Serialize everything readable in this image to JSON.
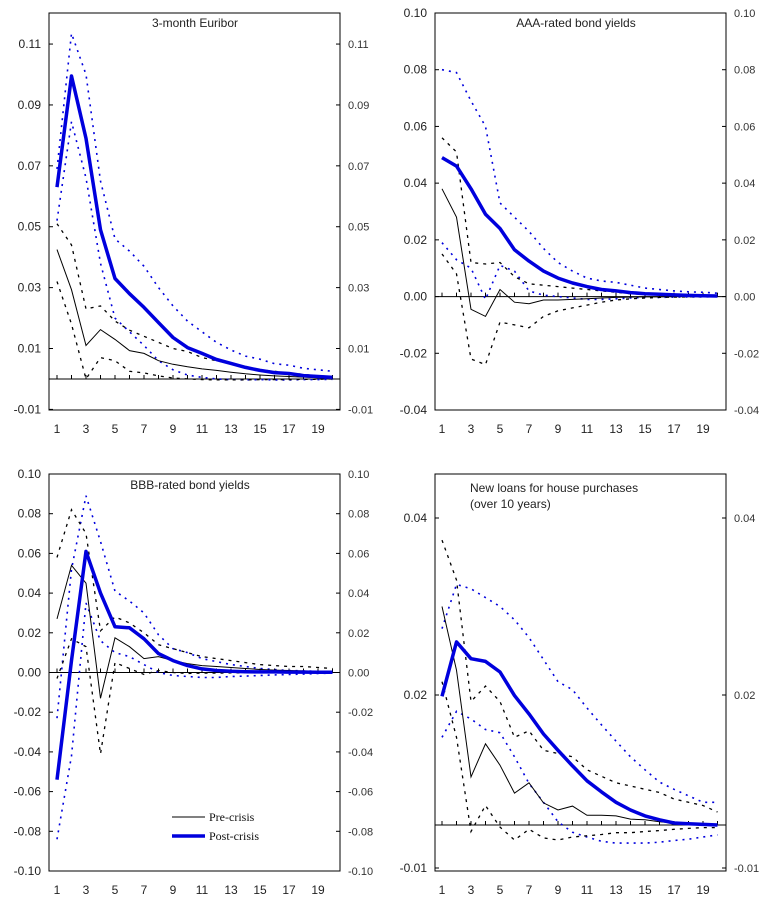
{
  "chart_data": [
    {
      "type": "line",
      "title": "3-month Euribor",
      "title_lines": [
        "3-month Euribor"
      ],
      "x": [
        1,
        2,
        3,
        4,
        5,
        6,
        7,
        8,
        9,
        10,
        11,
        12,
        13,
        14,
        15,
        16,
        17,
        18,
        19,
        20
      ],
      "xticks": [
        1,
        3,
        5,
        7,
        9,
        11,
        13,
        15,
        17,
        19
      ],
      "xlabel": "",
      "ylabel": "",
      "ylim": [
        -0.01,
        0.12
      ],
      "yticks": [
        -0.01,
        0.01,
        0.03,
        0.05,
        0.07,
        0.09,
        0.11
      ],
      "ytick_labels": [
        "-0.01",
        "0.01",
        "0.03",
        "0.05",
        "0.07",
        "0.09",
        "0.11"
      ],
      "grid": false,
      "zero_line": 0,
      "series": [
        {
          "name": "Post-crisis upper band",
          "style": "blue-dotted",
          "values": [
            0.069,
            0.1135,
            0.1,
            0.065,
            0.046,
            0.042,
            0.037,
            0.03,
            0.024,
            0.019,
            0.0155,
            0.012,
            0.0095,
            0.0075,
            0.0065,
            0.005,
            0.0045,
            0.0035,
            0.003,
            0.0025
          ]
        },
        {
          "name": "Post-crisis lower band",
          "style": "blue-dotted",
          "values": [
            0.052,
            0.0845,
            0.066,
            0.038,
            0.02,
            0.0155,
            0.011,
            0.006,
            0.003,
            0.0013,
            0.0005,
            0.0,
            -0.0002,
            -0.0003,
            -0.0002,
            -0.0003,
            -0.0003,
            -0.0002,
            -0.0002,
            -0.0001
          ]
        },
        {
          "name": "Pre-crisis upper band",
          "style": "black-dashed",
          "values": [
            0.051,
            0.044,
            0.023,
            0.024,
            0.019,
            0.016,
            0.014,
            0.012,
            0.01,
            0.009,
            0.007,
            0.006,
            0.005,
            0.004,
            0.003,
            0.0025,
            0.002,
            0.0015,
            0.001,
            0.0008
          ]
        },
        {
          "name": "Pre-crisis lower band",
          "style": "black-dashed",
          "values": [
            0.032,
            0.018,
            0.0,
            0.007,
            0.006,
            0.0025,
            0.002,
            0.001,
            0.0003,
            0.0,
            -0.0002,
            -0.0003,
            -0.0003,
            -0.0003,
            -0.0002,
            -0.0002,
            -0.0002,
            -0.0001,
            -0.0001,
            0.0
          ]
        },
        {
          "name": "Pre-crisis",
          "style": "black-thin",
          "values": [
            0.0425,
            0.0293,
            0.011,
            0.0162,
            0.013,
            0.0093,
            0.0084,
            0.006,
            0.0048,
            0.004,
            0.0033,
            0.0028,
            0.0022,
            0.0017,
            0.0013,
            0.001,
            0.0008,
            0.0006,
            0.0004,
            0.0003
          ]
        },
        {
          "name": "Post-crisis",
          "style": "blue-thick",
          "values": [
            0.063,
            0.0995,
            0.079,
            0.049,
            0.033,
            0.028,
            0.0235,
            0.0185,
            0.0136,
            0.0103,
            0.0084,
            0.0064,
            0.0051,
            0.0038,
            0.0028,
            0.0021,
            0.0018,
            0.0011,
            0.0008,
            0.0005
          ]
        }
      ]
    },
    {
      "type": "line",
      "title": "AAA-rated bond yields",
      "title_lines": [
        "AAA-rated bond yields"
      ],
      "x": [
        1,
        2,
        3,
        4,
        5,
        6,
        7,
        8,
        9,
        10,
        11,
        12,
        13,
        14,
        15,
        16,
        17,
        18,
        19,
        20
      ],
      "xticks": [
        1,
        3,
        5,
        7,
        9,
        11,
        13,
        15,
        17,
        19
      ],
      "xlabel": "",
      "ylabel": "",
      "ylim": [
        -0.04,
        0.1
      ],
      "yticks": [
        -0.04,
        -0.02,
        0.0,
        0.02,
        0.04,
        0.06,
        0.08,
        0.1
      ],
      "ytick_labels": [
        "-0.04",
        "-0.02",
        "0.00",
        "0.02",
        "0.04",
        "0.06",
        "0.08",
        "0.10"
      ],
      "grid": false,
      "zero_line": 0,
      "series": [
        {
          "name": "Post-crisis upper band",
          "style": "blue-dotted",
          "values": [
            0.08,
            0.079,
            0.069,
            0.06,
            0.033,
            0.028,
            0.023,
            0.017,
            0.012,
            0.009,
            0.0065,
            0.0055,
            0.005,
            0.004,
            0.003,
            0.0025,
            0.002,
            0.0017,
            0.0015,
            0.0012
          ]
        },
        {
          "name": "Post-crisis lower band",
          "style": "blue-dotted",
          "values": [
            0.019,
            0.013,
            0.01,
            -0.001,
            0.011,
            0.009,
            0.002,
            0.0005,
            0.0,
            -0.0005,
            -0.001,
            -0.001,
            -0.0008,
            -0.0005,
            -0.0003,
            -0.0003,
            -0.0002,
            -0.0001,
            -0.0001,
            0.0
          ]
        },
        {
          "name": "Pre-crisis upper band",
          "style": "black-dashed",
          "values": [
            0.056,
            0.051,
            0.012,
            0.0115,
            0.012,
            0.007,
            0.0045,
            0.004,
            0.0035,
            0.003,
            0.0025,
            0.002,
            0.0015,
            0.001,
            0.0008,
            0.0006,
            0.0005,
            0.0003,
            0.0002,
            0.0001
          ]
        },
        {
          "name": "Pre-crisis lower band",
          "style": "black-dashed",
          "values": [
            0.015,
            0.008,
            -0.022,
            -0.024,
            -0.009,
            -0.01,
            -0.011,
            -0.007,
            -0.005,
            -0.004,
            -0.003,
            -0.002,
            -0.0012,
            -0.0008,
            -0.0005,
            -0.0003,
            -0.0002,
            -0.0001,
            -0.0001,
            0.0
          ]
        },
        {
          "name": "Pre-crisis",
          "style": "black-thin",
          "values": [
            0.038,
            0.028,
            -0.0045,
            -0.007,
            0.0025,
            -0.002,
            -0.0025,
            -0.0012,
            -0.0012,
            -0.001,
            -0.0008,
            -0.0005,
            -0.0003,
            -0.0002,
            -0.0001,
            -0.0001,
            0.0,
            0.0,
            0.0,
            0.0
          ]
        },
        {
          "name": "Post-crisis",
          "style": "blue-thick",
          "values": [
            0.049,
            0.046,
            0.038,
            0.029,
            0.024,
            0.0165,
            0.0125,
            0.009,
            0.0065,
            0.0048,
            0.0035,
            0.0025,
            0.002,
            0.0014,
            0.001,
            0.0008,
            0.0006,
            0.0004,
            0.0003,
            0.0002
          ]
        }
      ]
    },
    {
      "type": "line",
      "title": "BBB-rated bond yields",
      "title_lines": [
        "BBB-rated bond yields"
      ],
      "x": [
        1,
        2,
        3,
        4,
        5,
        6,
        7,
        8,
        9,
        10,
        11,
        12,
        13,
        14,
        15,
        16,
        17,
        18,
        19,
        20
      ],
      "xticks": [
        1,
        3,
        5,
        7,
        9,
        11,
        13,
        15,
        17,
        19
      ],
      "xlabel": "",
      "ylabel": "",
      "ylim": [
        -0.1,
        0.1
      ],
      "yticks": [
        -0.1,
        -0.08,
        -0.06,
        -0.04,
        -0.02,
        0.0,
        0.02,
        0.04,
        0.06,
        0.08,
        0.1
      ],
      "ytick_labels": [
        "-0.10",
        "-0.08",
        "-0.06",
        "-0.04",
        "-0.02",
        "0.00",
        "0.02",
        "0.04",
        "0.06",
        "0.08",
        "0.10"
      ],
      "grid": false,
      "zero_line": 0,
      "legend": {
        "placement": "bottom-center",
        "entries": [
          {
            "label": "Pre-crisis",
            "style": "black-thin"
          },
          {
            "label": "Post-crisis",
            "style": "blue-thick"
          }
        ]
      },
      "series": [
        {
          "name": "Post-crisis upper band",
          "style": "blue-dotted",
          "values": [
            -0.023,
            0.052,
            0.089,
            0.066,
            0.041,
            0.036,
            0.03,
            0.019,
            0.012,
            0.01,
            0.007,
            0.0055,
            0.004,
            0.003,
            0.002,
            0.0015,
            0.001,
            0.0008,
            0.0006,
            0.0005
          ]
        },
        {
          "name": "Post-crisis lower band",
          "style": "blue-dotted",
          "values": [
            -0.084,
            -0.042,
            0.035,
            0.016,
            0.01,
            0.008,
            0.004,
            0.0,
            -0.0015,
            -0.002,
            -0.0025,
            -0.0025,
            -0.002,
            -0.0018,
            -0.0015,
            -0.0012,
            -0.001,
            -0.0008,
            -0.0005,
            -0.0003
          ]
        },
        {
          "name": "Pre-crisis upper band",
          "style": "black-dashed",
          "values": [
            0.058,
            0.082,
            0.07,
            0.021,
            0.028,
            0.025,
            0.02,
            0.014,
            0.012,
            0.01,
            0.008,
            0.007,
            0.006,
            0.005,
            0.004,
            0.0035,
            0.003,
            0.003,
            0.0025,
            0.002
          ]
        },
        {
          "name": "Pre-crisis lower band",
          "style": "black-dashed",
          "values": [
            -0.003,
            0.017,
            0.013,
            -0.041,
            0.005,
            0.002,
            -0.001,
            0.001,
            0.0,
            -0.0005,
            -0.0003,
            -0.0003,
            -0.0002,
            -0.0002,
            -0.0001,
            -0.0001,
            -0.0001,
            0.0,
            0.0,
            0.0
          ]
        },
        {
          "name": "Pre-crisis",
          "style": "black-thin",
          "values": [
            0.027,
            0.054,
            0.045,
            -0.013,
            0.0175,
            0.013,
            0.007,
            0.008,
            0.006,
            0.0045,
            0.0035,
            0.003,
            0.0025,
            0.002,
            0.0015,
            0.0012,
            0.001,
            0.0008,
            0.0006,
            0.0005
          ]
        },
        {
          "name": "Post-crisis",
          "style": "blue-thick",
          "values": [
            -0.054,
            0.006,
            0.061,
            0.04,
            0.023,
            0.0225,
            0.017,
            0.0095,
            0.006,
            0.0035,
            0.0018,
            0.001,
            0.0006,
            0.0004,
            0.0003,
            0.0003,
            0.0002,
            0.0002,
            0.0001,
            0.0001
          ]
        }
      ]
    },
    {
      "type": "line",
      "title": "New loans for house purchases (over 10 years)",
      "title_lines": [
        "New loans for house purchases",
        "(over 10 years)"
      ],
      "x": [
        1,
        2,
        3,
        4,
        5,
        6,
        7,
        8,
        9,
        10,
        11,
        12,
        13,
        14,
        15,
        16,
        17,
        18,
        19,
        20
      ],
      "xticks": [
        1,
        3,
        5,
        7,
        9,
        11,
        13,
        15,
        17,
        19
      ],
      "xlabel": "",
      "ylabel": "",
      "ylim": [
        -0.01,
        0.04
      ],
      "yticks": [
        -0.01,
        0.02,
        0.04
      ],
      "ytick_labels": [
        "-0.01",
        "0.02",
        "0.04"
      ],
      "y_axis_note": "non-uniform tick spacing as printed",
      "grid": false,
      "zero_line": 0,
      "series": [
        {
          "name": "Post-crisis upper band",
          "style": "blue-dotted",
          "values": [
            0.0275,
            0.0325,
            0.032,
            0.031,
            0.03,
            0.0285,
            0.0265,
            0.024,
            0.0215,
            0.0206,
            0.018,
            0.0154,
            0.0129,
            0.0105,
            0.0085,
            0.0066,
            0.0055,
            0.0045,
            0.0035,
            0.0035
          ]
        },
        {
          "name": "Post-crisis lower band",
          "style": "blue-dotted",
          "values": [
            0.0135,
            0.0175,
            0.0163,
            0.0147,
            0.0142,
            0.0105,
            0.0064,
            0.0035,
            0.0005,
            -0.0017,
            -0.0028,
            -0.0038,
            -0.0042,
            -0.0042,
            -0.0042,
            -0.004,
            -0.0036,
            -0.0033,
            -0.0028,
            -0.0023
          ]
        },
        {
          "name": "Pre-crisis upper band",
          "style": "black-dashed",
          "values": [
            0.0375,
            0.033,
            0.019,
            0.021,
            0.019,
            0.0135,
            0.0145,
            0.0115,
            0.011,
            0.0105,
            0.0085,
            0.0075,
            0.0065,
            0.006,
            0.0055,
            0.005,
            0.004,
            0.0035,
            0.003,
            0.002
          ]
        },
        {
          "name": "Pre-crisis lower band",
          "style": "black-dashed",
          "values": [
            0.0215,
            0.0135,
            -0.0015,
            0.003,
            -0.0005,
            -0.0035,
            -0.001,
            -0.003,
            -0.0035,
            -0.0028,
            -0.0025,
            -0.0022,
            -0.0018,
            -0.0018,
            -0.0015,
            -0.0013,
            -0.001,
            -0.0008,
            -0.0006,
            -0.0006
          ]
        },
        {
          "name": "Pre-crisis",
          "style": "black-thin",
          "values": [
            0.03,
            0.0228,
            0.0074,
            0.0125,
            0.0092,
            0.0049,
            0.0065,
            0.0034,
            0.0023,
            0.0029,
            0.0015,
            0.0015,
            0.0014,
            0.0009,
            0.0008,
            0.0005,
            0.0003,
            0.0002,
            0.0001,
            0.0
          ]
        },
        {
          "name": "Post-crisis",
          "style": "blue-thick",
          "values": [
            0.0198,
            0.026,
            0.0241,
            0.0238,
            0.0226,
            0.0199,
            0.0171,
            0.014,
            0.0115,
            0.0091,
            0.0068,
            0.0051,
            0.0035,
            0.0023,
            0.0014,
            0.0008,
            0.0003,
            0.0002,
            0.0001,
            0.0
          ]
        }
      ]
    }
  ],
  "colors": {
    "post_crisis": "#0000dd",
    "pre_crisis": "#000000",
    "axis": "#000000",
    "background": "#ffffff"
  }
}
